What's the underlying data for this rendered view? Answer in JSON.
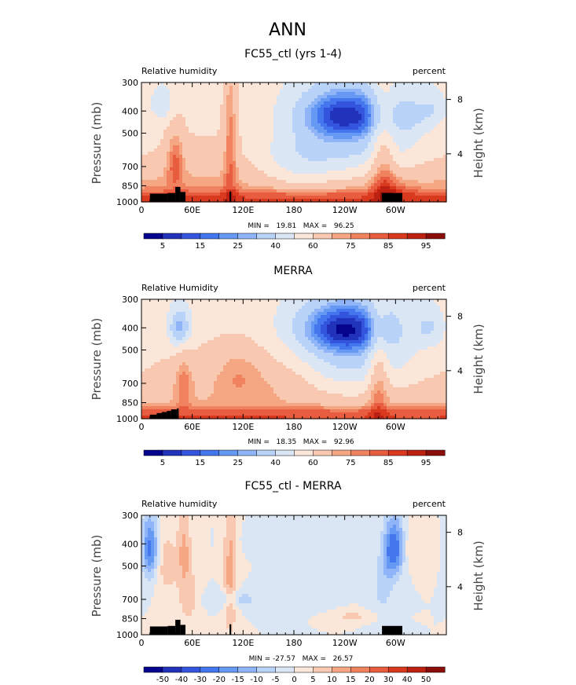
{
  "figure_title": "ANN",
  "colors": {
    "abs_palette": [
      "#04048c",
      "#2233bb",
      "#3355dd",
      "#4477ee",
      "#6699f4",
      "#8fb5f8",
      "#b8d2f8",
      "#dbe6f5",
      "#fbe6da",
      "#f8c8b0",
      "#f5a683",
      "#f1825f",
      "#e85d3f",
      "#d9391f",
      "#bc2112",
      "#8a0f0a"
    ],
    "diff_palette": [
      "#04048c",
      "#2233bb",
      "#3355dd",
      "#4477ee",
      "#6699f4",
      "#8fb5f8",
      "#b8d2f8",
      "#dbe6f5",
      "#fbe6da",
      "#f8c8b0",
      "#f5a683",
      "#f1825f",
      "#e85d3f",
      "#d9391f",
      "#bc2112",
      "#8a0f0a"
    ],
    "land": "#000000"
  },
  "chart_data": [
    {
      "type": "heatmap",
      "title": "FC55_ctl (yrs 1-4)",
      "variable_label": "Relative humidity",
      "units_label": "percent",
      "ylabel": "Pressure (mb)",
      "y2label": "Height (km)",
      "xticks": [
        "0",
        "60E",
        "120E",
        "180",
        "120W",
        "60W"
      ],
      "xtick_lons": [
        0,
        60,
        120,
        180,
        240,
        300
      ],
      "xlim": [
        0,
        360
      ],
      "yticks": [
        300,
        400,
        500,
        700,
        850,
        1000
      ],
      "ylim": [
        1000,
        300
      ],
      "y2ticks": [
        "8",
        "4"
      ],
      "y2tick_pressure": [
        356,
        616
      ],
      "stats": "MIN =   19.81   MAX =   96.25",
      "min": 19.81,
      "max": 96.25,
      "colorbar_labels": [
        "5",
        "15",
        "25",
        "40",
        "60",
        "75",
        "85",
        "95"
      ],
      "levels": [
        5,
        10,
        15,
        20,
        25,
        30,
        40,
        50,
        60,
        70,
        75,
        80,
        85,
        90,
        95
      ],
      "mean_profile": {
        "p": [
          300,
          400,
          500,
          600,
          700,
          850,
          925,
          1000
        ],
        "v": [
          55,
          58,
          60,
          62,
          67,
          73,
          84,
          88
        ]
      },
      "features": [
        {
          "lon": 25,
          "p": 375,
          "r": [
            14,
            70
          ],
          "a": -14
        },
        {
          "lon": 40,
          "p": 650,
          "r": [
            10,
            200
          ],
          "a": 18
        },
        {
          "lon": 105,
          "p": 500,
          "r": [
            8,
            480
          ],
          "a": 18
        },
        {
          "lon": 185,
          "p": 700,
          "r": [
            50,
            190
          ],
          "a": -14
        },
        {
          "lon": 240,
          "p": 410,
          "r": [
            55,
            110
          ],
          "a": -38
        },
        {
          "lon": 250,
          "p": 560,
          "r": [
            80,
            230
          ],
          "a": -22
        },
        {
          "lon": 285,
          "p": 580,
          "r": [
            14,
            350
          ],
          "a": 20
        },
        {
          "lon": 295,
          "p": 880,
          "r": [
            22,
            120
          ],
          "a": 10
        },
        {
          "lon": 320,
          "p": 420,
          "r": [
            20,
            90
          ],
          "a": -10
        },
        {
          "lon": 345,
          "p": 390,
          "r": [
            16,
            70
          ],
          "a": -12
        }
      ],
      "land": [
        [
          10,
          31,
          920
        ],
        [
          31,
          40,
          915
        ],
        [
          40,
          46,
          860
        ],
        [
          46,
          52,
          905
        ],
        [
          104,
          106,
          900
        ],
        [
          284,
          308,
          915
        ]
      ]
    },
    {
      "type": "heatmap",
      "title": "MERRA",
      "variable_label": "Relative Humidity",
      "units_label": "percent",
      "ylabel": "Pressure (mb)",
      "y2label": "Height (km)",
      "xticks": [
        "0",
        "60E",
        "120E",
        "180",
        "120W",
        "60W"
      ],
      "xtick_lons": [
        0,
        60,
        120,
        180,
        240,
        300
      ],
      "xlim": [
        0,
        360
      ],
      "yticks": [
        300,
        400,
        500,
        700,
        850,
        1000
      ],
      "ylim": [
        1000,
        300
      ],
      "y2ticks": [
        "8",
        "4"
      ],
      "y2tick_pressure": [
        356,
        616
      ],
      "stats": "MIN =   18.35   MAX =   92.96",
      "min": 18.35,
      "max": 92.96,
      "colorbar_labels": [
        "5",
        "15",
        "25",
        "40",
        "60",
        "75",
        "85",
        "95"
      ],
      "levels": [
        5,
        10,
        15,
        20,
        25,
        30,
        40,
        50,
        60,
        70,
        75,
        80,
        85,
        90,
        95
      ],
      "mean_profile": {
        "p": [
          300,
          400,
          500,
          600,
          700,
          850,
          925,
          1000
        ],
        "v": [
          55,
          57,
          60,
          62,
          66,
          70,
          82,
          86
        ]
      },
      "features": [
        {
          "lon": 45,
          "p": 400,
          "r": [
            13,
            80
          ],
          "a": -30
        },
        {
          "lon": 50,
          "p": 680,
          "r": [
            10,
            180
          ],
          "a": 14
        },
        {
          "lon": 115,
          "p": 620,
          "r": [
            32,
            180
          ],
          "a": 12
        },
        {
          "lon": 175,
          "p": 650,
          "r": [
            40,
            180
          ],
          "a": 8
        },
        {
          "lon": 240,
          "p": 400,
          "r": [
            55,
            110
          ],
          "a": -40
        },
        {
          "lon": 245,
          "p": 560,
          "r": [
            80,
            240
          ],
          "a": -22
        },
        {
          "lon": 280,
          "p": 620,
          "r": [
            12,
            360
          ],
          "a": 20
        },
        {
          "lon": 340,
          "p": 400,
          "r": [
            18,
            80
          ],
          "a": -14
        }
      ],
      "land": [
        [
          10,
          18,
          960
        ],
        [
          18,
          24,
          945
        ],
        [
          24,
          30,
          935
        ],
        [
          30,
          35,
          925
        ],
        [
          35,
          42,
          910
        ],
        [
          42,
          44,
          900
        ]
      ]
    },
    {
      "type": "heatmap",
      "title": "FC55_ctl - MERRA",
      "variable_label": "Relative humidity",
      "units_label": "percent",
      "ylabel": "Pressure (mb)",
      "y2label": "Height (km)",
      "xticks": [
        "0",
        "60E",
        "120E",
        "180",
        "120W",
        "60W"
      ],
      "xtick_lons": [
        0,
        60,
        120,
        180,
        240,
        300
      ],
      "xlim": [
        0,
        360
      ],
      "yticks": [
        300,
        400,
        500,
        700,
        850,
        1000
      ],
      "ylim": [
        1000,
        300
      ],
      "y2ticks": [
        "8",
        "4"
      ],
      "y2tick_pressure": [
        356,
        616
      ],
      "stats": "MIN = -27.57   MAX =   26.57",
      "min": -27.57,
      "max": 26.57,
      "colorbar_labels": [
        "-50",
        "-40",
        "-30",
        "-20",
        "-15",
        "-10",
        "-5",
        "0",
        "5",
        "10",
        "15",
        "20",
        "30",
        "40",
        "50"
      ],
      "levels": [
        -50,
        -40,
        -30,
        -20,
        -15,
        -10,
        -5,
        0,
        5,
        10,
        15,
        20,
        30,
        40,
        50
      ],
      "mean_profile": {
        "p": [
          300,
          500,
          700,
          850,
          1000
        ],
        "v": [
          0,
          0,
          0,
          0,
          0
        ]
      },
      "features": [
        {
          "lon": 10,
          "p": 420,
          "r": [
            9,
            130
          ],
          "a": -22
        },
        {
          "lon": 30,
          "p": 500,
          "r": [
            12,
            160
          ],
          "a": 8
        },
        {
          "lon": 50,
          "p": 420,
          "r": [
            8,
            160
          ],
          "a": 10
        },
        {
          "lon": 55,
          "p": 680,
          "r": [
            12,
            220
          ],
          "a": 8
        },
        {
          "lon": 105,
          "p": 550,
          "r": [
            8,
            460
          ],
          "a": 12
        },
        {
          "lon": 150,
          "p": 380,
          "r": [
            30,
            40
          ],
          "a": -4
        },
        {
          "lon": 110,
          "p": 700,
          "r": [
            30,
            60
          ],
          "a": -8
        },
        {
          "lon": 185,
          "p": 720,
          "r": [
            25,
            60
          ],
          "a": -4
        },
        {
          "lon": 250,
          "p": 830,
          "r": [
            22,
            35
          ],
          "a": 7
        },
        {
          "lon": 298,
          "p": 420,
          "r": [
            12,
            120
          ],
          "a": -26
        },
        {
          "lon": 285,
          "p": 620,
          "r": [
            12,
            160
          ],
          "a": -8
        },
        {
          "lon": 315,
          "p": 420,
          "r": [
            10,
            90
          ],
          "a": 5
        },
        {
          "lon": 335,
          "p": 420,
          "r": [
            12,
            80
          ],
          "a": 4
        }
      ],
      "land": [
        [
          10,
          31,
          920
        ],
        [
          31,
          40,
          915
        ],
        [
          40,
          46,
          860
        ],
        [
          46,
          52,
          905
        ],
        [
          104,
          106,
          900
        ],
        [
          284,
          308,
          915
        ]
      ]
    }
  ]
}
